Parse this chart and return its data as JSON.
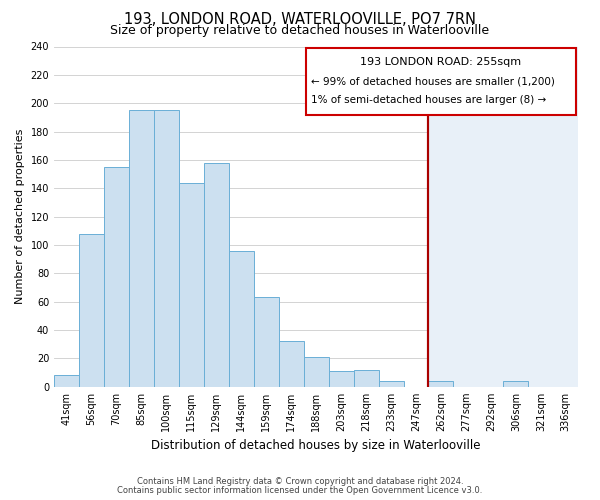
{
  "title": "193, LONDON ROAD, WATERLOOVILLE, PO7 7RN",
  "subtitle": "Size of property relative to detached houses in Waterlooville",
  "xlabel": "Distribution of detached houses by size in Waterlooville",
  "ylabel": "Number of detached properties",
  "bar_labels": [
    "41sqm",
    "56sqm",
    "70sqm",
    "85sqm",
    "100sqm",
    "115sqm",
    "129sqm",
    "144sqm",
    "159sqm",
    "174sqm",
    "188sqm",
    "203sqm",
    "218sqm",
    "233sqm",
    "247sqm",
    "262sqm",
    "277sqm",
    "292sqm",
    "306sqm",
    "321sqm",
    "336sqm"
  ],
  "bar_values": [
    8,
    108,
    155,
    195,
    195,
    144,
    158,
    96,
    63,
    32,
    21,
    11,
    12,
    4,
    0,
    4,
    0,
    0,
    4,
    0,
    0
  ],
  "bar_color": "#cce0f0",
  "bar_edge_color": "#6aafd6",
  "ylim": [
    0,
    240
  ],
  "yticks": [
    0,
    20,
    40,
    60,
    80,
    100,
    120,
    140,
    160,
    180,
    200,
    220,
    240
  ],
  "vline_x_bar": 14,
  "vline_color": "#aa0000",
  "annotation_title": "193 LONDON ROAD: 255sqm",
  "annotation_line1": "← 99% of detached houses are smaller (1,200)",
  "annotation_line2": "1% of semi-detached houses are larger (8) →",
  "footer1": "Contains HM Land Registry data © Crown copyright and database right 2024.",
  "footer2": "Contains public sector information licensed under the Open Government Licence v3.0.",
  "bg_color": "#ffffff",
  "plot_bg_left": "#ffffff",
  "plot_bg_right": "#e8f0f8",
  "grid_color": "#cccccc",
  "title_fontsize": 10.5,
  "subtitle_fontsize": 9,
  "xlabel_fontsize": 8.5,
  "ylabel_fontsize": 8,
  "tick_fontsize": 7,
  "footer_fontsize": 6
}
